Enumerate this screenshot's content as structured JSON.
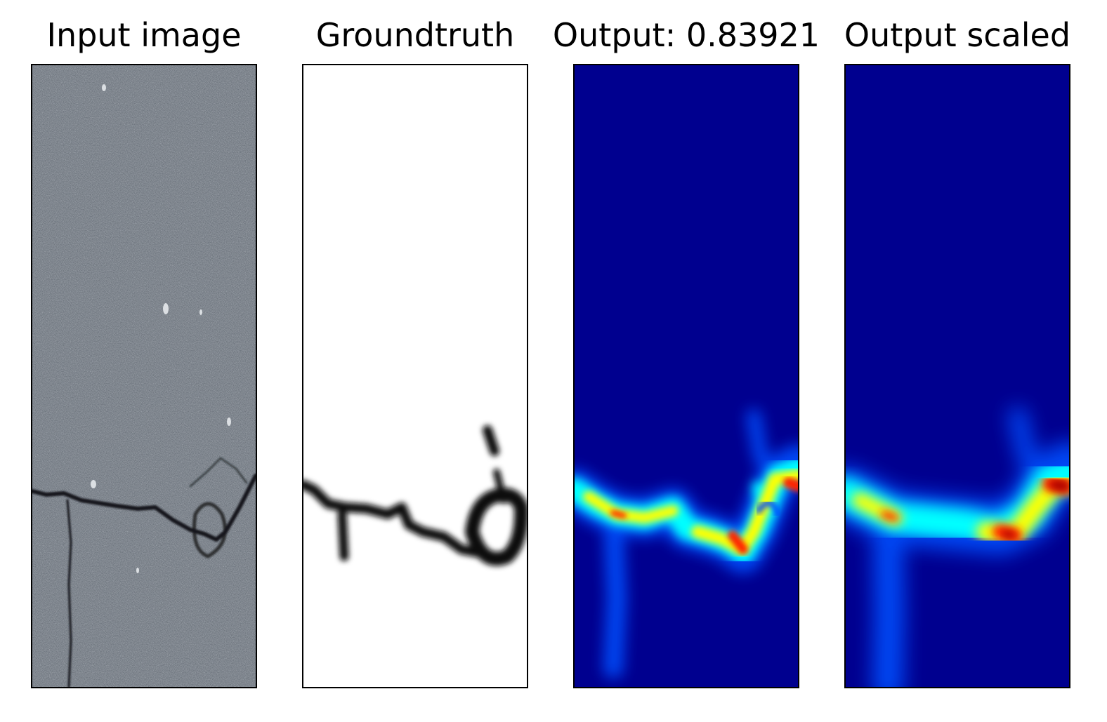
{
  "figure": {
    "panels": [
      {
        "title": "Input image"
      },
      {
        "title": "Groundtruth"
      },
      {
        "title": "Output: 0.83921"
      },
      {
        "title": "Output scaled"
      }
    ]
  },
  "colors": {
    "asphalt": "#6b727b",
    "crack": "#16191c",
    "groundtruth_bg": "#ffffff",
    "groundtruth_crack": "#111111",
    "heatmap_bg": "#00008f",
    "heatmap_low": "#0050ff",
    "heatmap_mid": "#00ffff",
    "heatmap_high": "#ffff00",
    "heatmap_peak": "#ff2000",
    "heatmap_max": "#a00000"
  }
}
